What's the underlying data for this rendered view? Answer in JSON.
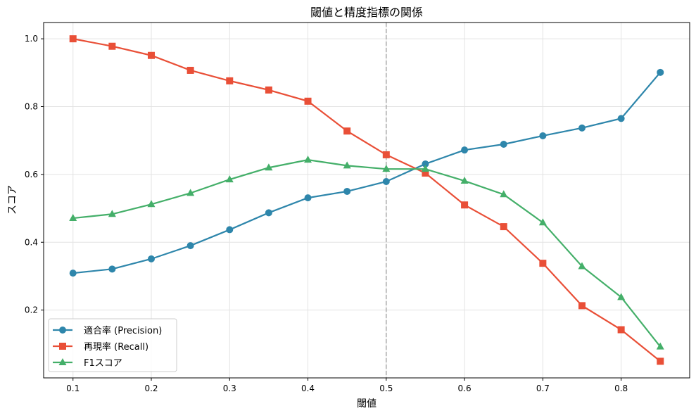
{
  "chart_data": {
    "type": "line",
    "title": "閾値と精度指標の関係",
    "xlabel": "閾値",
    "ylabel": "スコア",
    "xlim": [
      0.0625,
      0.8875
    ],
    "ylim": [
      0.0,
      1.048
    ],
    "xticks": [
      "0.1",
      "0.2",
      "0.3",
      "0.4",
      "0.5",
      "0.6",
      "0.7",
      "0.8"
    ],
    "yticks": [
      "0.2",
      "0.4",
      "0.6",
      "0.8",
      "1.0"
    ],
    "grid": true,
    "legend_position": "lower-left",
    "vline": {
      "x": 0.5,
      "style": "dashed",
      "color": "#aaaaaa"
    },
    "x": [
      0.1,
      0.15,
      0.2,
      0.25,
      0.3,
      0.35,
      0.4,
      0.45,
      0.5,
      0.55,
      0.6,
      0.65,
      0.7,
      0.75,
      0.8,
      0.85
    ],
    "series": [
      {
        "name": "適合率 (Precision)",
        "color": "#2e86ab",
        "marker": "circle",
        "values": [
          0.309,
          0.321,
          0.351,
          0.39,
          0.437,
          0.487,
          0.531,
          0.55,
          0.579,
          0.631,
          0.672,
          0.689,
          0.714,
          0.737,
          0.765,
          0.901
        ]
      },
      {
        "name": "再現率 (Recall)",
        "color": "#e94f37",
        "marker": "square",
        "values": [
          1.0,
          0.978,
          0.951,
          0.907,
          0.876,
          0.849,
          0.816,
          0.728,
          0.658,
          0.604,
          0.51,
          0.446,
          0.338,
          0.213,
          0.142,
          0.049
        ]
      },
      {
        "name": "F1スコア",
        "color": "#44af69",
        "marker": "triangle",
        "values": [
          0.471,
          0.483,
          0.512,
          0.545,
          0.585,
          0.62,
          0.643,
          0.626,
          0.616,
          0.616,
          0.581,
          0.541,
          0.458,
          0.329,
          0.238,
          0.092
        ]
      }
    ]
  }
}
